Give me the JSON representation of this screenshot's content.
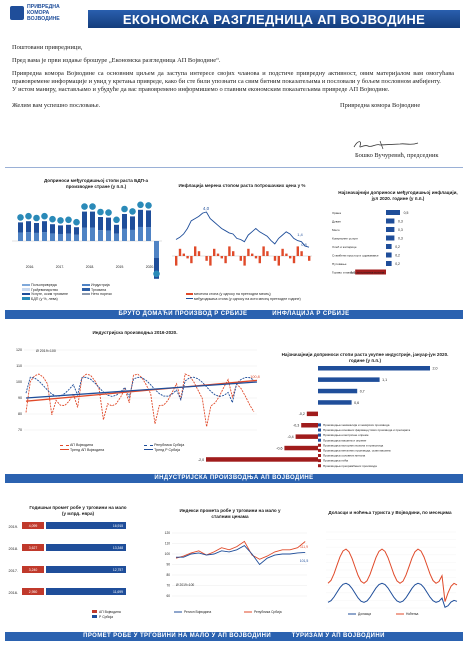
{
  "header": {
    "logo_lines": [
      "ПРИВРЕДНА",
      "КОМОРА",
      "ВОЈВОДИНЕ"
    ],
    "title": "ЕКОНОМСКА РАЗГЛЕДНИЦА АП ВОЈВОДИНЕ"
  },
  "letter": {
    "greeting": "Поштовани привредници,",
    "line1": "Пред вама је први издање брошуре „Економска разгледница АП Војводине“.",
    "line2": "Привредна комора Војводине са основним циљем да заступа интересе својих чланова и подстиче привредну активност, овим материјалом вам омогућава правовремене информације и увид у кретања привреде, како би сте били упознати са свим битним показатељима и пословали у бољем пословном амбијенту.",
    "line3": "У истом маниру, настављамо и убудуће да вас правовремено информишемо о главним економским показатељима привреде АП Војводине.",
    "closing": "Желим вам успешно пословање.",
    "org": "Привредна комора Војводине",
    "signature_name": "Бошко Вучуревић, председник"
  },
  "bands": {
    "b1_left": "БРУТО ДОМАЋИ ПРОИЗВОД Р СРБИЈЕ",
    "b1_right": "ИНФЛАЦИЈА Р СРБИЈЕ",
    "b2": "ИНДУСТРИЈСКА ПРОИЗВОДЊА АП ВОЈВОДИНЕ",
    "b3_left": "ПРОМЕТ РОБЕ У ТРГОВИНИ НА МАЛО У АП ВОЈВОДИНИ",
    "b3_right": "ТУРИЗАМ У АП ВОЈВОДИНИ"
  },
  "gdp": {
    "title": "Доприноси међугодишњој стопи раста БДП-а производне стране (у п.п.)",
    "years": [
      "2016.",
      "2017.",
      "2018.",
      "2019.",
      "2020."
    ],
    "legend": [
      "Пољопривреда",
      "Грађевинарство",
      "Услуге, осим трговине",
      "БДП (у %, лева)",
      "Индустрија",
      "Трговина",
      "Нето порези"
    ]
  },
  "inflation": {
    "title": "Инфлација мерена стопом раста потрошачких цена у %",
    "peak": "4,0",
    "end1": "1,4",
    "end2": "0,8",
    "legend": [
      "месечна стопа (у односу на претходни месец)",
      "међугодишња стопа (у односу на исти месец претходне године)"
    ]
  },
  "infl_contrib": {
    "title": "Најзначајнији доприноси међугодишњој инфлацији, јул 2020. године (у п.п.)",
    "items": [
      {
        "label": "Храна",
        "value": 0.5
      },
      {
        "label": "Дуван",
        "value": 0.3
      },
      {
        "label": "Месо",
        "value": 0.3
      },
      {
        "label": "Комуналне услуге",
        "value": 0.3
      },
      {
        "label": "Хлеб и житарице",
        "value": 0.2
      },
      {
        "label": "Стамбени простор и одржавање",
        "value": 0.2
      },
      {
        "label": "Путовање",
        "value": 0.2
      },
      {
        "label": "Гориво и мазиво за путничка возила",
        "value": -1.1
      }
    ]
  },
  "industry": {
    "title": "Индустријска производња 2016-2020.",
    "base": "Ø 2019=100",
    "end_label": "100,8",
    "legend": [
      "АП Војводина",
      "Тренд АП Војводина",
      "Република Србија",
      "Тренд Р Србија"
    ]
  },
  "ind_contrib": {
    "title": "Најзначајнији доприноси стопи раста укупне индустрије, јануар-јун 2020. године (у п.п.)",
    "items": [
      {
        "label": "Производња хемикалија и хемијских производа",
        "value": 2.0
      },
      {
        "label": "Производња основних фармацеутских производа и препарата",
        "value": 1.1
      },
      {
        "label": "Производња електричне опреме",
        "value": 0.7
      },
      {
        "label": "Производња машина и опреме",
        "value": 0.6
      },
      {
        "label": "Производња моторних возила и приколица",
        "value": -0.2
      },
      {
        "label": "Производња металних производа, осим машина",
        "value": -0.3
      },
      {
        "label": "Производња основних метала",
        "value": -0.4
      },
      {
        "label": "Производња пића",
        "value": -0.6
      },
      {
        "label": "Производња прехрамбених производа",
        "value": -2.0
      }
    ],
    "labels": [
      "2,0",
      "1,1",
      "0,7",
      "0,6",
      "-0,2",
      "-0,3",
      "-0,4",
      "-0,6",
      "-2,0"
    ]
  },
  "retail_annual": {
    "title": "Годишњи промет робе у трговини на мало (у млрд. евра)",
    "rows": [
      {
        "year": "2019.",
        "vo": "4,099",
        "rs": "16,915"
      },
      {
        "year": "2018.",
        "vo": "3,627",
        "rs": "13,348"
      },
      {
        "year": "2017.",
        "vo": "3,240",
        "rs": "12,757"
      },
      {
        "year": "2016.",
        "vo": "2,950",
        "rs": "11,699"
      }
    ],
    "legend": [
      "АП Војводина",
      "Р Србија"
    ]
  },
  "retail_index": {
    "title": "Индекси промета робе у трговини на мало у сталним ценама",
    "base": "Ø 2019=100",
    "end1": "111,9",
    "end2": "101,5",
    "legend": [
      "Регион Војводина",
      "Република Србија"
    ]
  },
  "tourism": {
    "title": "Доласци и ноћења туриста у Војводини, по месецима",
    "legend": [
      "Доласци",
      "Ноћења"
    ]
  },
  "colors": {
    "brand": "#1f4e9a",
    "band": "#2b62b0",
    "accent": "#e04a2a"
  }
}
